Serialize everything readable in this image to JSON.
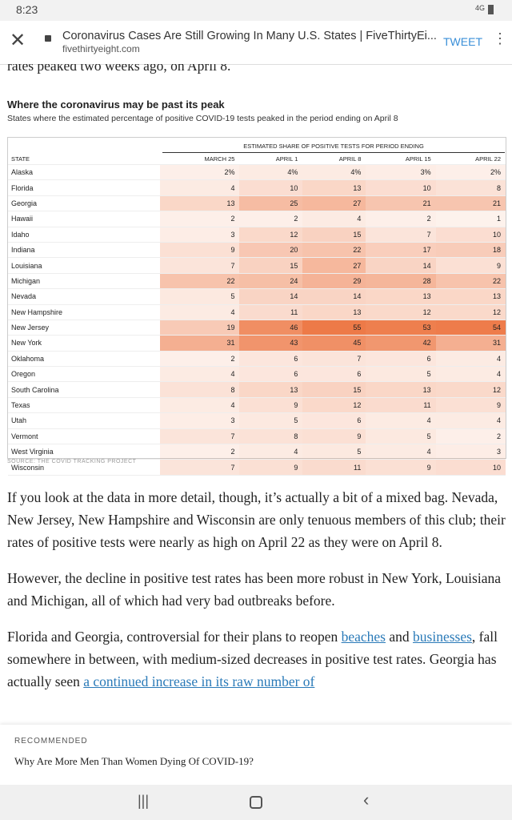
{
  "status_bar": {
    "time": "8:23",
    "network": "4G"
  },
  "address_bar": {
    "title": "Coronavirus Cases Are Still Growing In Many U.S. States | FiveThirtyEi...",
    "url": "fivethirtyeight.com",
    "action": "TWEET"
  },
  "article": {
    "lead_fragment": "rates peaked two weeks ago, on April 8.",
    "table_title": "Where the coronavirus may be past its peak",
    "table_subtitle": "States where the estimated percentage of positive COVID-19 tests peaked in the period ending on April 8",
    "table": {
      "group_header": "ESTIMATED SHARE OF POSITIVE TESTS FOR PERIOD ENDING",
      "columns": [
        "STATE",
        "MARCH 25",
        "APRIL 1",
        "APRIL 8",
        "APRIL 15",
        "APRIL 22"
      ],
      "rows": [
        [
          "Alaska",
          "2%",
          "4%",
          "4%",
          "3%",
          "2%"
        ],
        [
          "Florida",
          "4",
          "10",
          "13",
          "10",
          "8"
        ],
        [
          "Georgia",
          "13",
          "25",
          "27",
          "21",
          "21"
        ],
        [
          "Hawaii",
          "2",
          "2",
          "4",
          "2",
          "1"
        ],
        [
          "Idaho",
          "3",
          "12",
          "15",
          "7",
          "10"
        ],
        [
          "Indiana",
          "9",
          "20",
          "22",
          "17",
          "18"
        ],
        [
          "Louisiana",
          "7",
          "15",
          "27",
          "14",
          "9"
        ],
        [
          "Michigan",
          "22",
          "24",
          "29",
          "28",
          "22"
        ],
        [
          "Nevada",
          "5",
          "14",
          "14",
          "13",
          "13"
        ],
        [
          "New Hampshire",
          "4",
          "11",
          "13",
          "12",
          "12"
        ],
        [
          "New Jersey",
          "19",
          "46",
          "55",
          "53",
          "54"
        ],
        [
          "New York",
          "31",
          "43",
          "45",
          "42",
          "31"
        ],
        [
          "Oklahoma",
          "2",
          "6",
          "7",
          "6",
          "4"
        ],
        [
          "Oregon",
          "4",
          "6",
          "6",
          "5",
          "4"
        ],
        [
          "South Carolina",
          "8",
          "13",
          "15",
          "13",
          "12"
        ],
        [
          "Texas",
          "4",
          "9",
          "12",
          "11",
          "9"
        ],
        [
          "Utah",
          "3",
          "5",
          "6",
          "4",
          "4"
        ],
        [
          "Vermont",
          "7",
          "8",
          "9",
          "5",
          "2"
        ],
        [
          "West Virginia",
          "2",
          "4",
          "5",
          "4",
          "3"
        ],
        [
          "Wisconsin",
          "7",
          "9",
          "11",
          "9",
          "10"
        ]
      ],
      "source": "SOURCE: THE COVID TRACKING PROJECT"
    },
    "paragraphs": [
      [
        {
          "text": "If you look at the data in more detail, though, it’s actually a bit of a mixed bag. Nevada, New Jersey, New Hampshire and Wisconsin are only tenuous members of this club; their rates of positive tests were nearly as high on April 22 as they were on April 8."
        }
      ],
      [
        {
          "text": "However, the decline in positive test rates has been more robust in New York, Louisiana and Michigan, all of which had very bad outbreaks before."
        }
      ],
      [
        {
          "text": "Florida and Georgia, controversial for their plans to reopen "
        },
        {
          "text": "beaches",
          "link": true
        },
        {
          "text": " and "
        },
        {
          "text": "businesses",
          "link": true
        },
        {
          "text": ", fall somewhere in between, with medium-sized decreases in positive test rates. Georgia has actually seen "
        },
        {
          "text": "a continued increase in its raw number of",
          "link": true
        }
      ]
    ]
  },
  "recommended": {
    "label": "RECOMMENDED",
    "headline": "Why Are More Men Than Women Dying Of COVID-19?"
  }
}
